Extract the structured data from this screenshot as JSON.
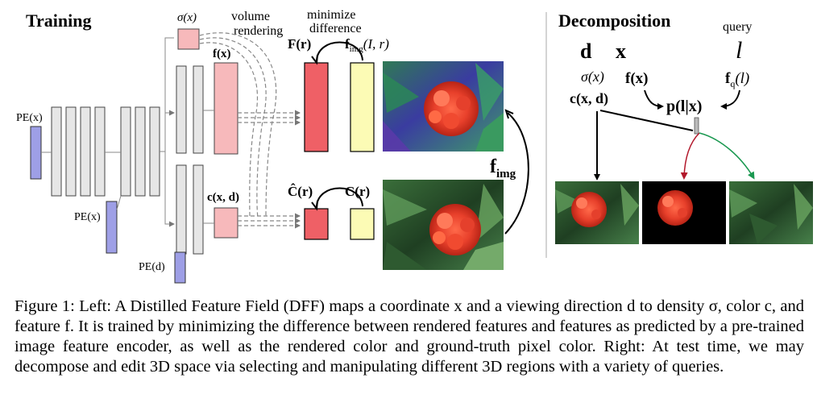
{
  "left": {
    "title": "Training",
    "labels": {
      "pe_x_input": "PE(x)",
      "pe_x_skip": "PE(x)",
      "pe_d": "PE(d)",
      "sigma": "σ(x)",
      "feature": "f(x)",
      "color": "c(x, d)",
      "volume_rendering_1": "volume",
      "volume_rendering_2": "rendering",
      "minimize_1": "minimize",
      "minimize_2": "difference",
      "rendered_feature": "F(r)",
      "image_feature": "f",
      "image_feature_sub": "img",
      "image_feature_args": "(I, r)",
      "rendered_color": "Ĉ(r)",
      "gt_color": "C(r)",
      "encoder": "f",
      "encoder_sub": "img"
    }
  },
  "right": {
    "title": "Decomposition",
    "labels": {
      "query": "query",
      "d": "d",
      "x": "x",
      "l": "l",
      "sigma": "σ(x)",
      "feature": "f(x)",
      "query_feature": "f",
      "query_feature_sub": "q",
      "query_feature_args": "(l)",
      "color": "c(x, d)",
      "prob": "p(l|x)"
    }
  },
  "colors": {
    "pink_block": "#f7b9bb",
    "red_block": "#ef6066",
    "yellow_block": "#fcfbb5",
    "blue_block": "#9e9fe6",
    "gray_block": "#e6e6e6",
    "red_arrow": "#b2182b",
    "green_arrow": "#1a9850"
  },
  "caption": {
    "text": "Figure 1: Left: A Distilled Feature Field (DFF) maps a coordinate x and a viewing direction d to density σ, color c, and feature f. It is trained by minimizing the difference between rendered features and features as predicted by a pre-trained image feature encoder, as well as the rendered color and ground-truth pixel color. Right: At test time, we may decompose and edit 3D space via selecting and manipulating different 3D regions with a variety of queries."
  }
}
